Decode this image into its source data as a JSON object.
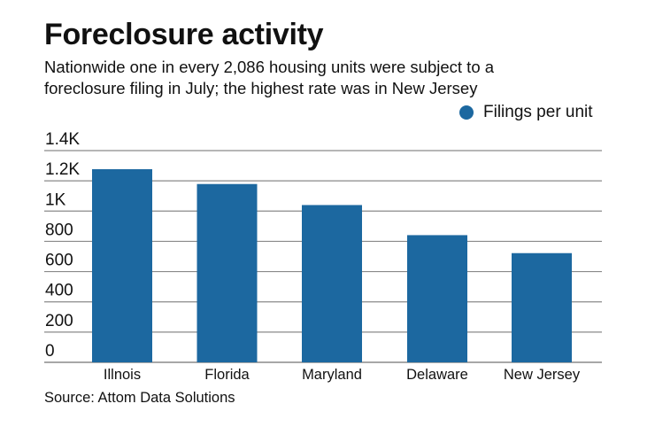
{
  "title": "Foreclosure activity",
  "subtitle_lines": [
    "Nationwide one in every 2,086 housing units were subject to a",
    "foreclosure filing in July; the highest rate was in New Jersey"
  ],
  "source": "Source: Attom Data Solutions",
  "chart_data": {
    "type": "bar",
    "categories": [
      "Illnois",
      "Florida",
      "Maryland",
      "Delaware",
      "New Jersey"
    ],
    "series": [
      {
        "name": "Filings per unit",
        "values": [
          1277,
          1179,
          1040,
          841,
          722
        ],
        "color": "#1c68a0"
      }
    ],
    "ylim": [
      0,
      1400
    ],
    "yticks": [
      0,
      200,
      400,
      600,
      800,
      1000,
      1200,
      1400
    ],
    "ytick_labels": [
      "0",
      "200",
      "400",
      "600",
      "800",
      "1K",
      "1.2K",
      "1.4K"
    ],
    "grid": true,
    "legend": "top-right",
    "xlabel": "",
    "ylabel": ""
  }
}
